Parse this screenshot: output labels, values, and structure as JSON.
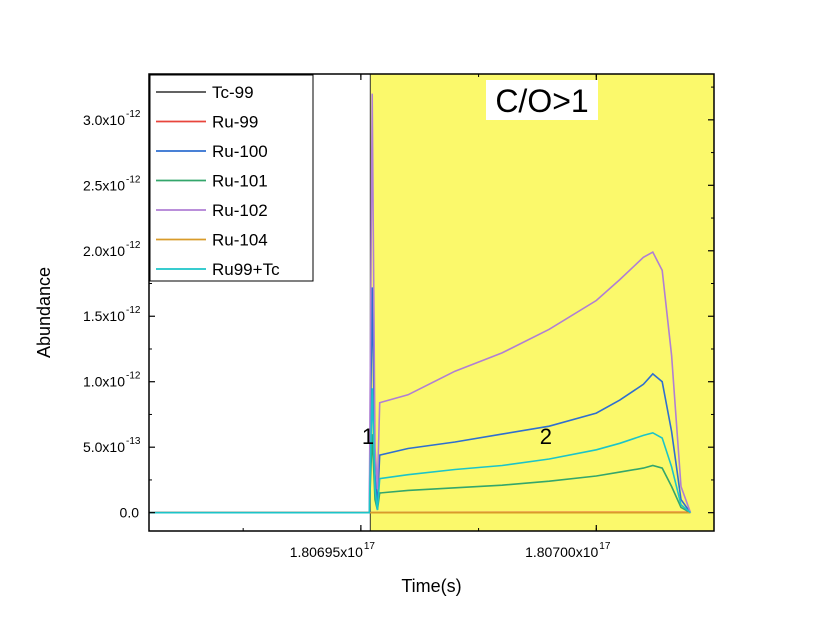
{
  "chart_data": {
    "type": "line",
    "title": "",
    "xlabel": "Time(s)",
    "ylabel": "Abundance",
    "x_unit_exponent": 17,
    "xlim": [
      1.806905,
      1.807025
    ],
    "ylim": [
      -0.14,
      3.35
    ],
    "y_exponent": -12,
    "x_ticks": [
      {
        "value": 1.80695,
        "mantissa": "1.80695x10",
        "exp": "17"
      },
      {
        "value": 1.807,
        "mantissa": "1.80700x10",
        "exp": "17"
      }
    ],
    "y_ticks": [
      {
        "value": 0.0,
        "mantissa": "0.0",
        "exp": ""
      },
      {
        "value": 0.5,
        "mantissa": "5.0x10",
        "exp": "-13"
      },
      {
        "value": 1.0,
        "mantissa": "1.0x10",
        "exp": "-12"
      },
      {
        "value": 1.5,
        "mantissa": "1.5x10",
        "exp": "-12"
      },
      {
        "value": 2.0,
        "mantissa": "2.0x10",
        "exp": "-12"
      },
      {
        "value": 2.5,
        "mantissa": "2.5x10",
        "exp": "-12"
      },
      {
        "value": 3.0,
        "mantissa": "3.0x10",
        "exp": "-12"
      }
    ],
    "grid": false,
    "legend_position": "top-left",
    "shaded_region": {
      "x_start": 1.806952,
      "x_end": 1.807025,
      "color": "#fbf96b",
      "label": "C/O>1"
    },
    "annotations": [
      {
        "text": "1",
        "x": 1.8069515,
        "y": 0.6
      },
      {
        "text": "2",
        "x": 1.8069893,
        "y": 0.6
      }
    ],
    "series": [
      {
        "name": "Tc-99",
        "color": "#4d4d4d",
        "x": [
          1.806905,
          1.80702
        ],
        "y": [
          0.0,
          0.0
        ]
      },
      {
        "name": "Ru-99",
        "color": "#e8453c",
        "x": [
          1.806905,
          1.80695,
          1.807,
          1.80702
        ],
        "y": [
          0.0,
          0.0,
          0.003,
          0.003
        ]
      },
      {
        "name": "Ru-100",
        "color": "#2f6fd0",
        "x": [
          1.806905,
          1.806951,
          1.8069518,
          1.8069524,
          1.806953,
          1.8069535,
          1.806954,
          1.80696,
          1.80697,
          1.80698,
          1.80699,
          1.807,
          1.807005,
          1.80701,
          1.807012,
          1.807014,
          1.807016,
          1.807018,
          1.80702
        ],
        "y": [
          0.0,
          0.0,
          0.0,
          1.72,
          0.3,
          0.05,
          0.44,
          0.49,
          0.54,
          0.6,
          0.66,
          0.76,
          0.86,
          0.98,
          1.06,
          1.0,
          0.62,
          0.1,
          0.0
        ]
      },
      {
        "name": "Ru-101",
        "color": "#34a66b",
        "x": [
          1.806905,
          1.806951,
          1.8069518,
          1.8069524,
          1.806953,
          1.8069535,
          1.806954,
          1.80696,
          1.80697,
          1.80698,
          1.80699,
          1.807,
          1.807005,
          1.80701,
          1.807012,
          1.807014,
          1.807016,
          1.807018,
          1.80702
        ],
        "y": [
          0.0,
          0.0,
          0.0,
          0.6,
          0.1,
          0.02,
          0.15,
          0.17,
          0.19,
          0.21,
          0.24,
          0.28,
          0.31,
          0.34,
          0.36,
          0.34,
          0.2,
          0.04,
          0.0
        ]
      },
      {
        "name": "Ru-102",
        "color": "#b07fd4",
        "x": [
          1.806905,
          1.806951,
          1.8069518,
          1.8069524,
          1.806953,
          1.8069535,
          1.806954,
          1.80696,
          1.80697,
          1.80698,
          1.80699,
          1.807,
          1.807005,
          1.80701,
          1.807012,
          1.807014,
          1.807016,
          1.807018,
          1.80702
        ],
        "y": [
          0.0,
          0.0,
          0.0,
          3.2,
          0.5,
          0.18,
          0.84,
          0.9,
          1.08,
          1.22,
          1.4,
          1.62,
          1.78,
          1.95,
          1.99,
          1.85,
          1.2,
          0.2,
          0.0
        ]
      },
      {
        "name": "Ru-104",
        "color": "#d99b2a",
        "x": [
          1.806905,
          1.80702
        ],
        "y": [
          0.0,
          0.0
        ]
      },
      {
        "name": "Ru99+Tc",
        "color": "#1cc4c8",
        "x": [
          1.806905,
          1.806951,
          1.8069518,
          1.8069524,
          1.806953,
          1.8069535,
          1.806954,
          1.80696,
          1.80697,
          1.80698,
          1.80699,
          1.807,
          1.807005,
          1.80701,
          1.807012,
          1.807014,
          1.807016,
          1.807018,
          1.80702
        ],
        "y": [
          0.0,
          0.0,
          0.0,
          0.95,
          0.18,
          0.02,
          0.26,
          0.29,
          0.33,
          0.36,
          0.41,
          0.48,
          0.53,
          0.59,
          0.61,
          0.57,
          0.35,
          0.06,
          0.0
        ]
      }
    ]
  }
}
